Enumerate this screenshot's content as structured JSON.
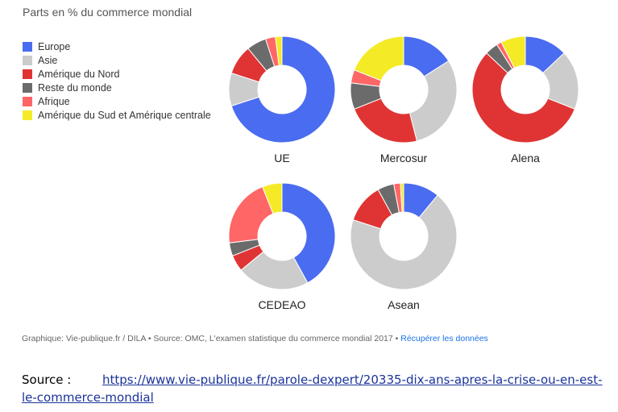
{
  "title": "Parts en % du commerce mondial",
  "legend": [
    {
      "label": "Europe",
      "color": "#4a6cf0"
    },
    {
      "label": "Asie",
      "color": "#cccccc"
    },
    {
      "label": "Amérique du Nord",
      "color": "#e03434"
    },
    {
      "label": "Reste du monde",
      "color": "#6b6b6b"
    },
    {
      "label": "Afrique",
      "color": "#ff6666"
    },
    {
      "label": "Amérique du Sud et Amérique centrale",
      "color": "#f5ea26"
    }
  ],
  "chart_data": {
    "type": "pie",
    "subtype": "donut",
    "title": "Parts en % du commerce mondial",
    "series_names": [
      "Europe",
      "Asie",
      "Amérique du Nord",
      "Reste du monde",
      "Afrique",
      "Amérique du Sud et Amérique centrale"
    ],
    "charts": [
      {
        "name": "UE",
        "values": [
          70,
          10,
          9,
          6,
          3,
          2
        ]
      },
      {
        "name": "Mercosur",
        "values": [
          16,
          30,
          23,
          8,
          4,
          19
        ]
      },
      {
        "name": "Alena",
        "values": [
          13,
          18,
          56,
          4,
          1.5,
          7.5
        ]
      },
      {
        "name": "CEDEAO",
        "values": [
          42,
          22,
          5,
          4,
          21,
          6
        ]
      },
      {
        "name": "Asean",
        "values": [
          11,
          69,
          12,
          5,
          2,
          1
        ]
      }
    ]
  },
  "footer": {
    "text": "Graphique: Vie-publique.fr / DILA • Source: OMC, L'examen statistique du commerce mondial 2017 • ",
    "link": "Récupérer les données"
  },
  "source": {
    "label": "Source :",
    "url": "https://www.vie-publique.fr/parole-dexpert/20335-dix-ans-apres-la-crise-ou-en-est-le-commerce-mondial"
  }
}
